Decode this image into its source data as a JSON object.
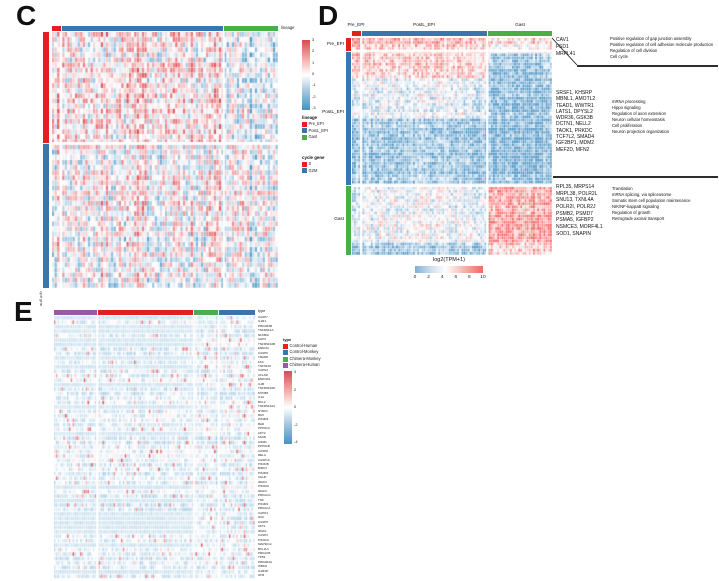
{
  "panel_c": {
    "label": "C",
    "col_annotation_title": "lineage",
    "row_axis_title": "cycle gene",
    "col_groups": [
      {
        "name": "Pre_EPI",
        "color": "#E3211C",
        "frac": 0.04
      },
      {
        "name": "PostL_EPI",
        "color": "#3B75AE",
        "frac": 0.72
      },
      {
        "name": "Gast",
        "color": "#4CAE4B",
        "frac": 0.24
      }
    ],
    "row_groups": [
      {
        "name": "S",
        "color": "#E3211C",
        "frac": 0.435
      },
      {
        "name": "G2M",
        "color": "#3B75AE",
        "frac": 0.565
      }
    ],
    "colorbar_ticks": [
      "3",
      "2",
      "1",
      "0",
      "-1",
      "-2",
      "-3"
    ],
    "legend_lineage": {
      "title": "lineage",
      "items": [
        {
          "label": "Pre_EPI",
          "color": "#E3211C"
        },
        {
          "label": "PostL_EPI",
          "color": "#3B75AE"
        },
        {
          "label": "Gast",
          "color": "#4CAE4B"
        }
      ]
    },
    "legend_cycle": {
      "title": "cycle gene",
      "items": [
        {
          "label": "S",
          "color": "#E3211C"
        },
        {
          "label": "G2M",
          "color": "#3B75AE"
        }
      ]
    },
    "heatmap": {
      "mode": "blocks",
      "rows": 50,
      "cols": 88,
      "seed": 7,
      "max": 3,
      "noise": 1.8,
      "col_streak": 0.75,
      "row_streak": 0.35,
      "row_fracs": [
        0.435,
        0.565
      ],
      "col_fracs": [
        0.04,
        0.72,
        0.24
      ],
      "block_bias": [
        [
          0.85,
          0.5,
          -0.75
        ],
        [
          0.3,
          0.12,
          -0.35
        ]
      ],
      "col_sep": [
        0.04,
        0.76
      ],
      "row_sep": [
        0.435
      ],
      "neg": "#4694C8",
      "pos": "#E25057"
    }
  },
  "panel_d": {
    "label": "D",
    "col_labels": [
      "Pre_EPI",
      "PostL_EPI",
      "Gast"
    ],
    "row_labels": [
      "Pre_EPI",
      "PostL_EPI",
      "Gast"
    ],
    "colorbar_title": "log2(TPM+1)",
    "colorbar_ticks": [
      "0",
      "2",
      "4",
      "6",
      "8",
      "10"
    ],
    "go_block1": {
      "genes": [
        "CAV1",
        "FSD1",
        "MRPL41"
      ],
      "terms": [
        "Positive regulation of gap junction assembly",
        "Positive regulation of cell adhesion molecule production",
        "Regulation of cell division",
        "Cell cycle"
      ]
    },
    "go_block2": {
      "genes": [
        "SRSF1, KHSRP",
        "MBNL1, AMOTL2",
        "TEAD1, WWTR1",
        "LATS1, DPYSL2",
        "WDR36, GSK3B",
        "DCTN1, NELL2",
        "TAOK1, PRKDC",
        "TCF7L2, SMAD4",
        "IGF2BP1, MDM2",
        "MEF2D, MFN2"
      ],
      "terms": [
        "mRNA processing",
        "Hippo signaling",
        "Regulation of axon extension",
        "Neuron cellular homeostasis",
        "Cell proliferation",
        "Neuron projection organization"
      ]
    },
    "go_block3": {
      "genes": [
        "RPL35, MRPS14",
        "MRPL38, POLR2L",
        "SNU13, TXNL4A",
        "POLR2I, POLR2J",
        "PSMB2, PSMD7",
        "PSMA5, IGFBP2",
        "NSMCE3, MORF4L1",
        "SOD1, SNAPIN"
      ],
      "terms": [
        "Translation",
        "mRNA splicing, via spliceosome",
        "Somatic stem cell population maintenance",
        "NIK/NF-kappaB signaling",
        "Regulation of growth",
        "Retrograde axonal transport"
      ]
    },
    "col_groups": [
      {
        "name": "Pre_EPI",
        "color": "#E3211C",
        "frac": 0.045
      },
      {
        "name": "PostL_EPI",
        "color": "#3B75AE",
        "frac": 0.63
      },
      {
        "name": "Gast",
        "color": "#4CAE4B",
        "frac": 0.325
      }
    ],
    "row_groups": [
      {
        "name": "Pre_EPI",
        "color": "#E3211C",
        "frac": 0.06
      },
      {
        "name": "PostL_EPI",
        "color": "#3B75AE",
        "frac": 0.62
      },
      {
        "name": "Gast",
        "color": "#4CAE4B",
        "frac": 0.32
      }
    ],
    "heatmap": {
      "mode": "bands",
      "rows": 70,
      "cols": 95,
      "seed": 23,
      "min": 0,
      "max": 10,
      "noise": 2.1,
      "col_streak": 0.9,
      "row_streak": 0.6,
      "col_fracs": [
        0.045,
        0.63,
        0.325
      ],
      "row_bands": [
        {
          "frac": 0.06,
          "means": [
            8.2,
            7.2,
            5.8
          ]
        },
        {
          "frac": 0.12,
          "means": [
            7.2,
            6.6,
            1.6
          ]
        },
        {
          "frac": 0.19,
          "means": [
            4.6,
            4.3,
            1.5
          ]
        },
        {
          "frac": 0.31,
          "means": [
            2.0,
            1.8,
            1.2
          ]
        },
        {
          "frac": 0.25,
          "means": [
            4.2,
            4.6,
            8.2
          ]
        },
        {
          "frac": 0.07,
          "means": [
            2.0,
            2.0,
            6.5
          ]
        }
      ],
      "col_sep": [
        0.045,
        0.675
      ],
      "extra_col_sep": [
        0.3,
        0.465
      ],
      "row_sep": [
        0.06,
        0.68
      ],
      "neg": "#4C94C6",
      "pos": "#EF5F5B"
    }
  },
  "panel_e": {
    "label": "E",
    "col_annotation_title": "type",
    "col_groups": [
      {
        "name": "Chimera-Human",
        "color": "#9B59A5",
        "frac": 0.215
      },
      {
        "name": "Control-Human",
        "color": "#E3211C",
        "frac": 0.48
      },
      {
        "name": "Chimera-Monkey",
        "color": "#4CAE4B",
        "frac": 0.125
      },
      {
        "name": "Control-Monkey",
        "color": "#3B75AE",
        "frac": 0.18
      }
    ],
    "legend_type": {
      "title": "type",
      "items": [
        {
          "label": "Control-Human",
          "color": "#E3211C"
        },
        {
          "label": "Control-Monkey",
          "color": "#3B75AE"
        },
        {
          "label": "Chimera-Monkey",
          "color": "#4CAE4B"
        },
        {
          "label": "Chimera-Human",
          "color": "#9B59A5"
        }
      ]
    },
    "colorbar_ticks": [
      "4",
      "2",
      "0",
      "-2",
      "-4"
    ],
    "gene_labels": [
      "CASP7",
      "IL1R1",
      "PRKAR2B",
      "TNFRSF1A",
      "NFKBIA",
      "CHP2",
      "TNFRSF10B",
      "ENDOG",
      "CASP6",
      "TRADD",
      "FAS",
      "TNFSF10",
      "CAPN2",
      "CFLAR",
      "ENDOD1",
      "IL1B",
      "TNFRSF10D",
      "MYD88",
      "IL1A",
      "BCL2",
      "TNFRSF10A",
      "NTRK1",
      "BAX",
      "PIK3R3",
      "BAD",
      "PPP3CA",
      "AKT2",
      "FADD",
      "AIFM1",
      "PPP3CB",
      "CASP8",
      "RELA",
      "CASP10",
      "PIK3CB",
      "BIRC3",
      "PIK3R2",
      "CHUK",
      "IRAK4",
      "PIK3CD",
      "IRAK3",
      "PRKACG",
      "TNF",
      "PIK3R1",
      "PRKACA",
      "CAPN1",
      "NGF",
      "CASP9",
      "AKT1",
      "IRAK1",
      "CASP3",
      "PIK3CG",
      "MAP3K14",
      "BCL2L1",
      "PRKACB",
      "TP53",
      "PRKAR2A",
      "IKBKG",
      "IL1RAP",
      "ATM"
    ],
    "heatmap": {
      "mode": "spike",
      "rows": 59,
      "cols": 108,
      "seed": 41,
      "max": 4,
      "base": -0.65,
      "noise": 0.95,
      "col_streak": 0.25,
      "row_streak": 0.3,
      "spike_p": 0.065,
      "spike_v": 3.0,
      "band_p": 0.3,
      "col_fracs": [
        0.215,
        0.48,
        0.125,
        0.18
      ],
      "col_sep": [
        0.215,
        0.695,
        0.82
      ],
      "row_gap": 0.9,
      "neg": "#4694C8",
      "pos": "#E25057"
    }
  },
  "chart_data": [
    {
      "type": "heatmap",
      "panel": "C",
      "description": "Cell-cycle gene expression heatmap (z-score), columns grouped by lineage, rows grouped by cycle gene phase",
      "column_groups": [
        "Pre_EPI",
        "PostL_EPI",
        "Gast"
      ],
      "row_groups": [
        "S",
        "G2M"
      ],
      "colorbar_range": [
        -3,
        3
      ],
      "colorbar_ticks": [
        3,
        2,
        1,
        0,
        -1,
        -2,
        -3
      ],
      "legend_position": "right",
      "cluster_mean_zscore": {
        "S": {
          "Pre_EPI": 0.85,
          "PostL_EPI": 0.5,
          "Gast": -0.75
        },
        "G2M": {
          "Pre_EPI": 0.3,
          "PostL_EPI": 0.12,
          "Gast": -0.35
        }
      }
    },
    {
      "type": "heatmap",
      "panel": "D",
      "description": "Expression heatmap log2(TPM+1) of cluster marker genes across Pre_EPI, PostL_EPI and Gast cells with GO annotations",
      "column_groups": [
        "Pre_EPI",
        "PostL_EPI",
        "Gast"
      ],
      "row_groups": [
        "Pre_EPI",
        "PostL_EPI",
        "Gast"
      ],
      "colorbar_label": "log2(TPM+1)",
      "colorbar_ticks": [
        0,
        2,
        4,
        6,
        8,
        10
      ],
      "cluster_genes": {
        "Pre_EPI": [
          "CAV1",
          "FSD1",
          "MRPL41"
        ],
        "PostL_EPI": [
          "SRSF1",
          "KHSRP",
          "MBNL1",
          "AMOTL2",
          "TEAD1",
          "WWTR1",
          "LATS1",
          "DPYSL2",
          "WDR36",
          "GSK3B",
          "DCTN1",
          "NELL2",
          "TAOK1",
          "PRKDC",
          "TCF7L2",
          "SMAD4",
          "IGF2BP1",
          "MDM2",
          "MEF2D",
          "MFN2"
        ],
        "Gast": [
          "RPL35",
          "MRPS14",
          "MRPL38",
          "POLR2L",
          "SNU13",
          "TXNL4A",
          "POLR2I",
          "POLR2J",
          "PSMB2",
          "PSMD7",
          "PSMA5",
          "IGFBP2",
          "NSMCE3",
          "MORF4L1",
          "SOD1",
          "SNAPIN"
        ]
      },
      "go_terms": {
        "Pre_EPI": [
          "Positive regulation of gap junction assembly",
          "Positive regulation of cell adhesion molecule production",
          "Regulation of cell division",
          "Cell cycle"
        ],
        "PostL_EPI": [
          "mRNA processing",
          "Hippo signaling",
          "Regulation of axon extension",
          "Neuron cellular homeostasis",
          "Cell proliferation",
          "Neuron projection organization"
        ],
        "Gast": [
          "Translation",
          "mRNA splicing, via spliceosome",
          "Somatic stem cell population maintenance",
          "NIK/NF-kappaB signaling",
          "Regulation of growth",
          "Retrograde axonal transport"
        ]
      }
    },
    {
      "type": "heatmap",
      "panel": "E",
      "description": "Apoptosis-pathway gene expression heatmap (z-score) across chimera and control human/monkey cells",
      "column_groups": [
        "Chimera-Human",
        "Control-Human",
        "Chimera-Monkey",
        "Control-Monkey"
      ],
      "rows": [
        "CASP7",
        "IL1R1",
        "PRKAR2B",
        "TNFRSF1A",
        "NFKBIA",
        "CHP2",
        "TNFRSF10B",
        "ENDOG",
        "CASP6",
        "TRADD",
        "FAS",
        "TNFSF10",
        "CAPN2",
        "CFLAR",
        "ENDOD1",
        "IL1B",
        "TNFRSF10D",
        "MYD88",
        "IL1A",
        "BCL2",
        "TNFRSF10A",
        "NTRK1",
        "BAX",
        "PIK3R3",
        "BAD",
        "PPP3CA",
        "AKT2",
        "FADD",
        "AIFM1",
        "PPP3CB",
        "CASP8",
        "RELA",
        "CASP10",
        "PIK3CB",
        "BIRC3",
        "PIK3R2",
        "CHUK",
        "IRAK4",
        "PIK3CD",
        "IRAK3",
        "PRKACG",
        "TNF",
        "PIK3R1",
        "PRKACA",
        "CAPN1",
        "NGF",
        "CASP9",
        "AKT1",
        "IRAK1",
        "CASP3",
        "PIK3CG",
        "MAP3K14",
        "BCL2L1",
        "PRKACB",
        "TP53",
        "PRKAR2A",
        "IKBKG",
        "IL1RAP",
        "ATM"
      ],
      "colorbar_range": [
        -4,
        4
      ],
      "colorbar_ticks": [
        4,
        2,
        0,
        -2,
        -4
      ],
      "legend_position": "right"
    }
  ]
}
